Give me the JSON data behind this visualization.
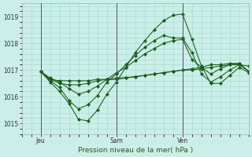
{
  "title": "Pression niveau de la mer( hPa )",
  "bg_color": "#cceee8",
  "grid_color": "#99ddcc",
  "line_color": "#1a5c1a",
  "ylim": [
    1014.6,
    1019.5
  ],
  "yticks": [
    1015,
    1016,
    1017,
    1018,
    1019
  ],
  "xlim": [
    0,
    48
  ],
  "jeu_x": 4,
  "sam_x": 20,
  "ven_x": 34,
  "lines": [
    {
      "x": [
        4,
        6,
        8,
        10,
        12,
        14,
        16,
        18,
        20,
        22,
        24,
        26,
        28,
        30,
        32,
        34,
        36,
        38,
        40,
        42,
        44,
        46,
        48
      ],
      "y": [
        1016.95,
        1016.65,
        1016.6,
        1016.6,
        1016.6,
        1016.6,
        1016.65,
        1016.65,
        1016.65,
        1016.7,
        1016.75,
        1016.8,
        1016.85,
        1016.9,
        1016.95,
        1017.0,
        1017.0,
        1017.05,
        1017.1,
        1017.15,
        1017.2,
        1017.2,
        1017.15
      ]
    },
    {
      "x": [
        4,
        6,
        8,
        10,
        12,
        14,
        16,
        18,
        20,
        22,
        24,
        26,
        28,
        30,
        32,
        34,
        36,
        38,
        40,
        42,
        44,
        46,
        48
      ],
      "y": [
        1016.95,
        1016.65,
        1016.5,
        1016.45,
        1016.45,
        1016.5,
        1016.6,
        1016.65,
        1016.7,
        1016.72,
        1016.75,
        1016.8,
        1016.85,
        1016.9,
        1016.95,
        1017.0,
        1017.05,
        1017.1,
        1017.2,
        1017.2,
        1017.25,
        1017.25,
        1016.95
      ]
    },
    {
      "x": [
        4,
        6,
        8,
        10,
        12,
        14,
        16,
        18,
        20,
        22,
        24,
        26,
        28,
        30,
        32,
        34,
        36,
        38,
        40,
        42,
        44,
        46,
        48
      ],
      "y": [
        1016.95,
        1016.7,
        1016.55,
        1016.3,
        1016.1,
        1016.2,
        1016.4,
        1016.65,
        1016.9,
        1017.1,
        1017.35,
        1017.6,
        1017.8,
        1018.0,
        1018.1,
        1018.15,
        1017.4,
        1017.1,
        1016.85,
        1017.05,
        1017.2,
        1017.25,
        1016.95
      ]
    },
    {
      "x": [
        4,
        6,
        8,
        10,
        12,
        14,
        16,
        18,
        20,
        22,
        24,
        26,
        28,
        30,
        32,
        34,
        36,
        38,
        40,
        42,
        44,
        46,
        48
      ],
      "y": [
        1016.95,
        1016.6,
        1016.35,
        1015.85,
        1015.55,
        1015.7,
        1016.05,
        1016.55,
        1016.85,
        1017.2,
        1017.55,
        1017.85,
        1018.1,
        1018.3,
        1018.2,
        1018.2,
        1017.65,
        1016.85,
        1016.55,
        1016.75,
        1017.0,
        1017.2,
        1016.95
      ]
    },
    {
      "x": [
        4,
        6,
        8,
        10,
        12,
        14,
        16,
        18,
        20,
        22,
        24,
        26,
        28,
        30,
        32,
        34,
        36,
        38,
        40,
        42,
        44,
        46,
        48
      ],
      "y": [
        1016.95,
        1016.55,
        1016.2,
        1015.75,
        1015.15,
        1015.1,
        1015.5,
        1016.1,
        1016.55,
        1017.1,
        1017.65,
        1018.1,
        1018.5,
        1018.85,
        1019.05,
        1019.1,
        1018.15,
        1017.15,
        1016.5,
        1016.5,
        1016.8,
        1017.1,
        1016.9
      ]
    }
  ]
}
